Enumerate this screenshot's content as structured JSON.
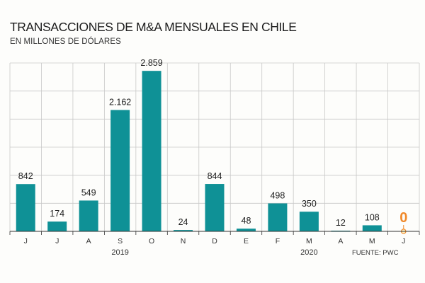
{
  "colors": {
    "bar": "#0f9196",
    "highlight": "#f0892a",
    "grid": "#c8c8c8",
    "axis": "#333333",
    "background": "#fdfdfb"
  },
  "chart_data": {
    "type": "bar",
    "title": "TRANSACCIONES DE M&A MENSUALES EN CHILE",
    "subtitle": "EN MILLONES DE DÓLARES",
    "categories": [
      "J",
      "J",
      "A",
      "S",
      "O",
      "N",
      "D",
      "E",
      "F",
      "M",
      "A",
      "M",
      "J"
    ],
    "values": [
      842,
      174,
      549,
      2162,
      2859,
      24,
      844,
      48,
      498,
      350,
      12,
      108,
      0
    ],
    "data_labels": [
      "842",
      "174",
      "549",
      "2.162",
      "2.859",
      "24",
      "844",
      "48",
      "498",
      "350",
      "12",
      "108",
      "0"
    ],
    "highlight_index": 12,
    "year_labels": [
      {
        "label": "2019",
        "after_category": 3
      },
      {
        "label": "2020",
        "after_category": 9
      }
    ],
    "ylim": [
      0,
      3000
    ],
    "gridlines": [
      500,
      1000,
      1500,
      2000,
      2500,
      3000
    ],
    "grid": true,
    "source": "FUENTE: PWC"
  }
}
